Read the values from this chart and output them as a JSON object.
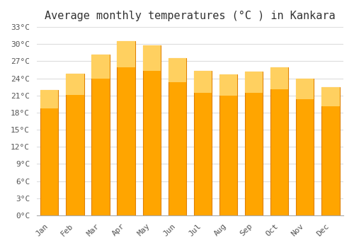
{
  "title": "Average monthly temperatures (°C ) in Kankara",
  "months": [
    "Jan",
    "Feb",
    "Mar",
    "Apr",
    "May",
    "Jun",
    "Jul",
    "Aug",
    "Sep",
    "Oct",
    "Nov",
    "Dec"
  ],
  "temperatures": [
    22.0,
    24.8,
    28.2,
    30.5,
    29.8,
    27.5,
    25.3,
    24.7,
    25.2,
    26.0,
    24.0,
    22.5
  ],
  "bar_color": "#FFA500",
  "bar_edge_color": "#E08000",
  "ylim": [
    0,
    33
  ],
  "yticks": [
    0,
    3,
    6,
    9,
    12,
    15,
    18,
    21,
    24,
    27,
    30,
    33
  ],
  "ytick_labels": [
    "0°C",
    "3°C",
    "6°C",
    "9°C",
    "12°C",
    "15°C",
    "18°C",
    "21°C",
    "24°C",
    "27°C",
    "30°C",
    "33°C"
  ],
  "background_color": "#FFFFFF",
  "grid_color": "#DDDDDD",
  "title_fontsize": 11,
  "tick_fontsize": 8,
  "font_family": "monospace"
}
